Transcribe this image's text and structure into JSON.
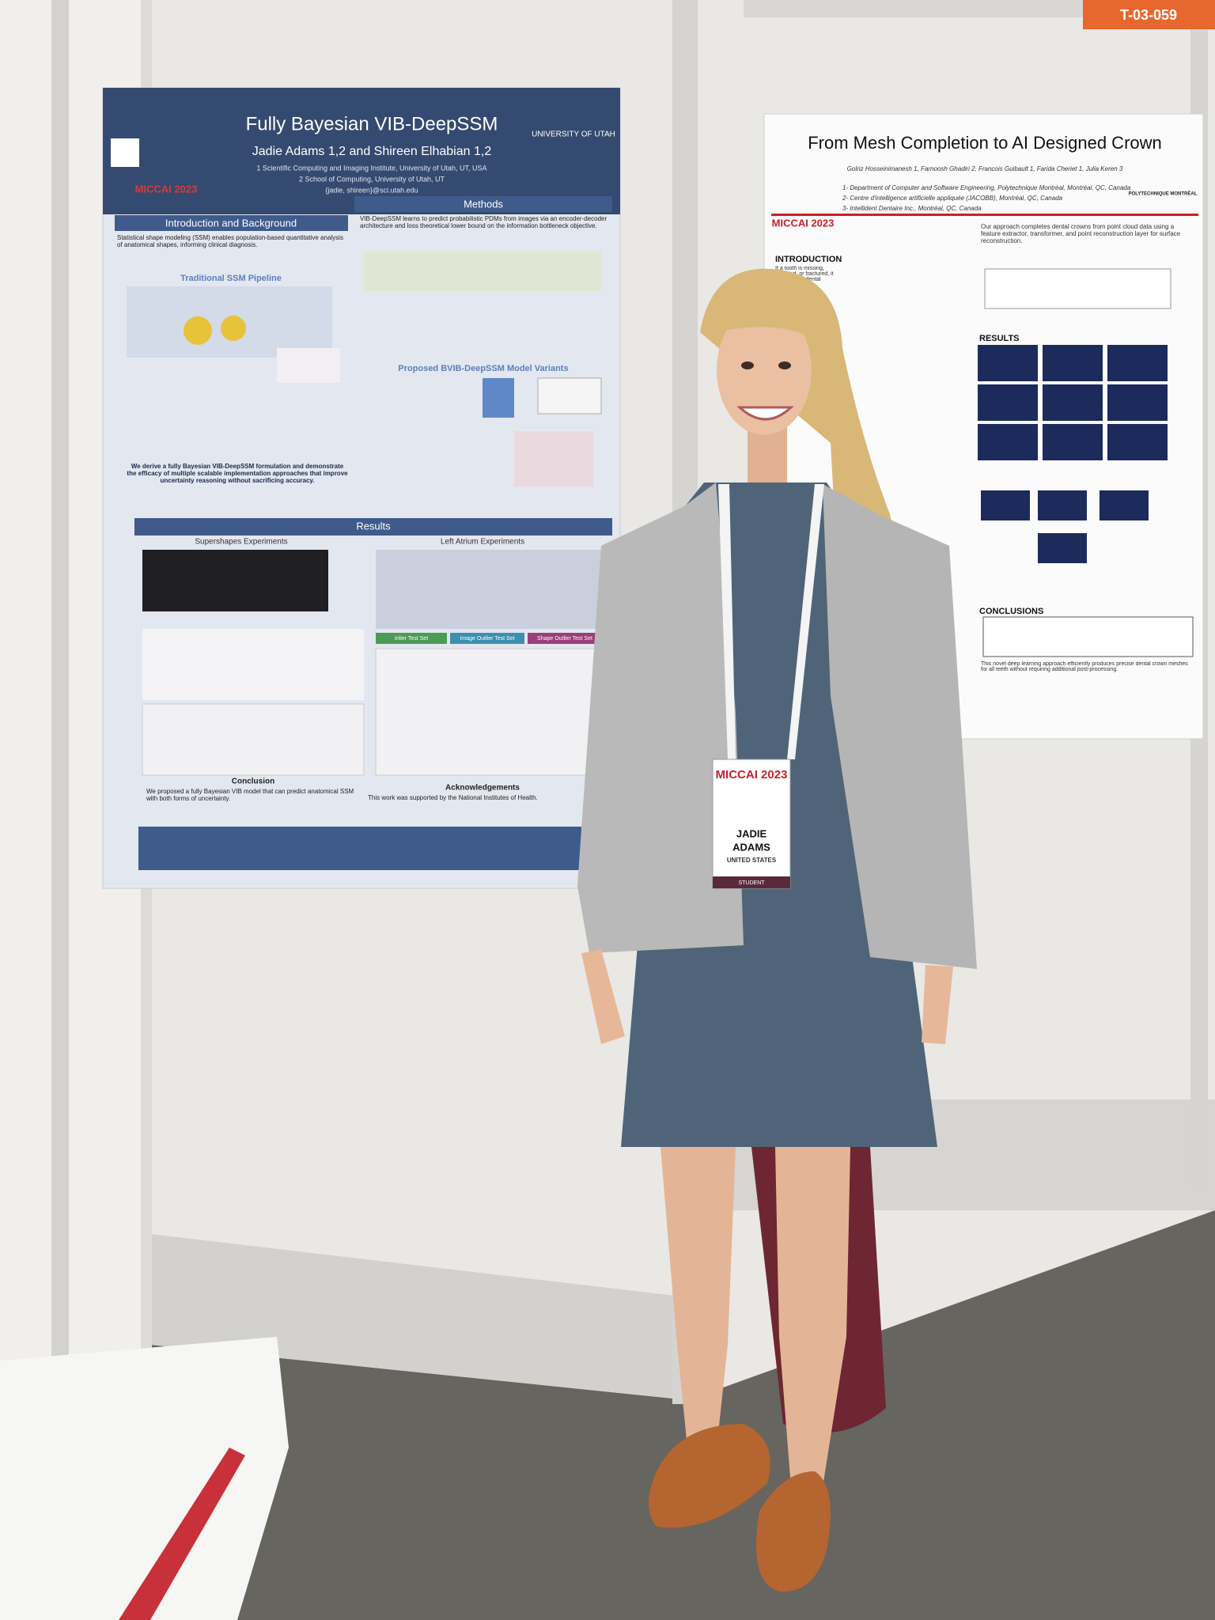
{
  "booth_tag": "T-03-059",
  "left_poster": {
    "title": "Fully Bayesian VIB-DeepSSM",
    "authors": "Jadie Adams 1,2 and Shireen Elhabian 1,2",
    "affiliation_1": "1 Scientific Computing and Imaging Institute, University of Utah, UT, USA",
    "affiliation_2": "2 School of Computing, University of Utah, UT",
    "email": "{jadie, shireen}@sci.utah.edu",
    "logo_left": "MICCAI 2023",
    "logo_right": "UNIVERSITY OF UTAH",
    "sections": {
      "intro": "Introduction and Background",
      "methods": "Methods",
      "pipeline": "Traditional SSM Pipeline",
      "variants": "Proposed BVIB-DeepSSM Model Variants",
      "results": "Results",
      "supershapes": "Supershapes Experiments",
      "left_atrium": "Left Atrium Experiments",
      "conclusion": "Conclusion",
      "acknowledgements": "Acknowledgements"
    },
    "intro_text": "Statistical shape modeling (SSM) enables population-based quantitative analysis of anatomical shapes, informing clinical diagnosis.",
    "methods_text": "VIB-DeepSSM learns to predict probabilistic PDMs from images via an encoder-decoder architecture and loss theoretical lower bound on the information bottleneck objective.",
    "summary_text": "We derive a fully Bayesian VIB-DeepSSM formulation and demonstrate the efficacy of multiple scalable implementation approaches that improve uncertainty reasoning without sacrificing accuracy.",
    "test_sets": [
      "Inlier Test Set",
      "Image Outlier Test Set",
      "Shape Outlier Test Set"
    ],
    "conclusion_text": "We proposed a fully Bayesian VIB model that can predict anatomical SSM with both forms of uncertainty.",
    "ack_text": "This work was supported by the National Institutes of Health."
  },
  "right_poster": {
    "title": "From Mesh Completion to AI Designed Crown",
    "authors": "Golriz Hosseinimanesh 1, Farnoosh Ghadiri 2, Francois Guibault 1, Farida Cheriet 1, Julia Keren 3",
    "affiliation_1": "1- Department of Computer and Software Engineering, Polytechnique Montréal, Montréal, QC, Canada",
    "affiliation_2": "2- Centre d'intelligence artificielle appliquée (JACOBB), Montréal, QC, Canada",
    "affiliation_3": "3- Intellident Dentaire Inc., Montréal, QC, Canada",
    "logo_left": "MICCAI 2023",
    "logo_right": "POLYTECHNIQUE MONTRÉAL",
    "sections": {
      "intro": "INTRODUCTION",
      "results": "RESULTS",
      "conclusions": "CONCLUSIONS"
    },
    "intro_text": "If a tooth is missing, decayed, or fractured, it may need a dental crown.",
    "method_text": "Our approach completes dental crowns from point cloud data using a feature extractor, transformer, and point reconstruction layer for surface reconstruction.",
    "conclusion_text": "This novel deep learning approach efficiently produces precise dental crown meshes for all teeth without requiring additional post-processing."
  },
  "badge": {
    "event": "MICCAI 2023",
    "name_first": "JADIE",
    "name_last": "ADAMS",
    "country": "UNITED STATES",
    "role": "STUDENT"
  }
}
